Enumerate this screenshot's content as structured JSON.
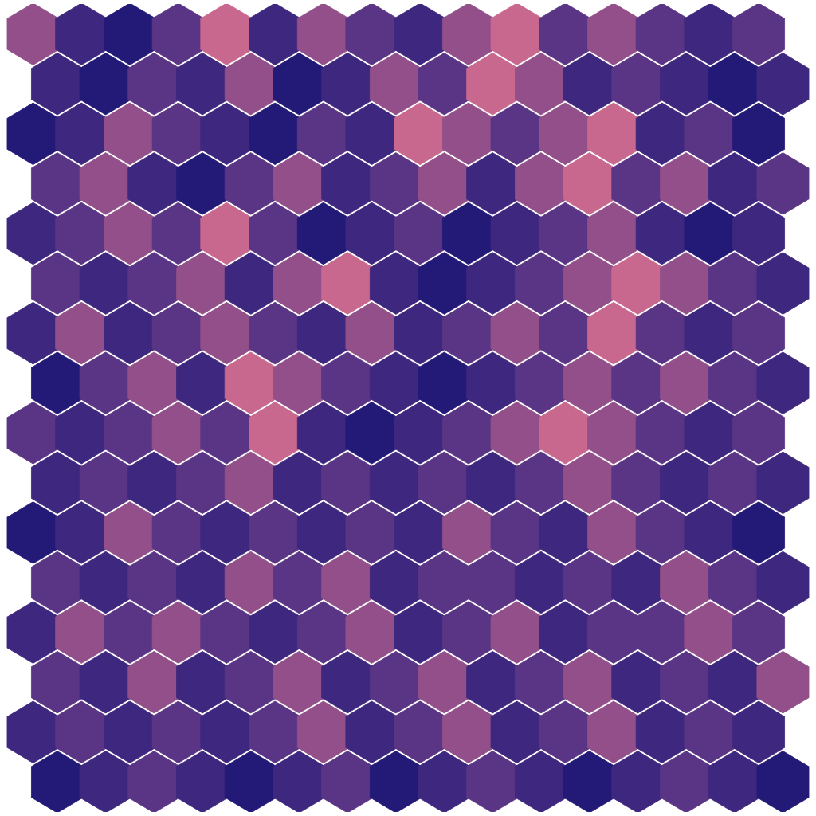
{
  "chart_data": {
    "type": "hexbin",
    "tick_labels": false,
    "cells": [
      [
        0.5,
        0.3,
        0.2,
        0.4,
        0.6,
        0.3,
        0.5,
        0.4,
        0.3,
        0.5,
        0.6,
        0.4,
        0.5,
        0.4,
        0.3,
        0.4
      ],
      [
        0.3,
        0.2,
        0.4,
        0.3,
        0.5,
        0.2,
        0.3,
        0.5,
        0.4,
        0.6,
        0.5,
        0.3,
        0.4,
        0.3,
        0.2,
        0.3
      ],
      [
        0.2,
        0.3,
        0.5,
        0.4,
        0.3,
        0.2,
        0.4,
        0.3,
        0.6,
        0.5,
        0.4,
        0.5,
        0.6,
        0.3,
        0.4,
        0.2
      ],
      [
        0.4,
        0.5,
        0.3,
        0.2,
        0.4,
        0.5,
        0.3,
        0.4,
        0.5,
        0.3,
        0.5,
        0.6,
        0.4,
        0.5,
        0.3,
        0.4
      ],
      [
        0.3,
        0.4,
        0.5,
        0.4,
        0.6,
        0.4,
        0.2,
        0.3,
        0.4,
        0.2,
        0.3,
        0.4,
        0.5,
        0.3,
        0.2,
        0.3
      ],
      [
        0.4,
        0.3,
        0.4,
        0.5,
        0.3,
        0.5,
        0.6,
        0.3,
        0.2,
        0.3,
        0.4,
        0.5,
        0.6,
        0.5,
        0.4,
        0.3
      ],
      [
        0.3,
        0.5,
        0.3,
        0.4,
        0.5,
        0.4,
        0.3,
        0.5,
        0.3,
        0.4,
        0.5,
        0.4,
        0.6,
        0.4,
        0.3,
        0.4
      ],
      [
        0.2,
        0.4,
        0.5,
        0.3,
        0.6,
        0.5,
        0.4,
        0.3,
        0.2,
        0.3,
        0.4,
        0.5,
        0.4,
        0.5,
        0.4,
        0.3
      ],
      [
        0.4,
        0.3,
        0.4,
        0.5,
        0.4,
        0.6,
        0.3,
        0.2,
        0.3,
        0.4,
        0.5,
        0.6,
        0.5,
        0.4,
        0.3,
        0.4
      ],
      [
        0.3,
        0.4,
        0.3,
        0.4,
        0.5,
        0.3,
        0.4,
        0.3,
        0.4,
        0.3,
        0.4,
        0.5,
        0.4,
        0.3,
        0.4,
        0.3
      ],
      [
        0.2,
        0.3,
        0.5,
        0.4,
        0.3,
        0.4,
        0.3,
        0.4,
        0.3,
        0.5,
        0.4,
        0.3,
        0.5,
        0.4,
        0.3,
        0.2
      ],
      [
        0.4,
        0.3,
        0.4,
        0.3,
        0.5,
        0.4,
        0.5,
        0.3,
        0.4,
        0.4,
        0.3,
        0.4,
        0.3,
        0.5,
        0.4,
        0.3
      ],
      [
        0.3,
        0.5,
        0.4,
        0.5,
        0.4,
        0.3,
        0.4,
        0.5,
        0.3,
        0.4,
        0.5,
        0.3,
        0.4,
        0.4,
        0.5,
        0.4
      ],
      [
        0.4,
        0.3,
        0.5,
        0.3,
        0.4,
        0.5,
        0.3,
        0.4,
        0.5,
        0.3,
        0.4,
        0.5,
        0.3,
        0.4,
        0.3,
        0.5
      ],
      [
        0.3,
        0.4,
        0.3,
        0.4,
        0.3,
        0.4,
        0.5,
        0.3,
        0.4,
        0.5,
        0.3,
        0.4,
        0.5,
        0.3,
        0.4,
        0.3
      ],
      [
        0.2,
        0.3,
        0.4,
        0.3,
        0.2,
        0.3,
        0.4,
        0.2,
        0.3,
        0.4,
        0.3,
        0.2,
        0.3,
        0.4,
        0.3,
        0.2
      ]
    ]
  }
}
